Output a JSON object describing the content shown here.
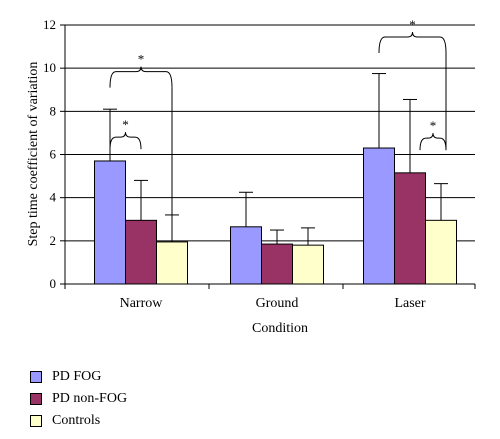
{
  "chart_data": {
    "type": "bar",
    "ylabel": "Step time coefficient of variation",
    "xlabel": "Condition",
    "ylim": [
      0,
      12
    ],
    "yticks": [
      0,
      2,
      4,
      6,
      8,
      10,
      12
    ],
    "grid": true,
    "legend_position": "bottom-left",
    "categories": [
      "Narrow",
      "Ground",
      "Laser"
    ],
    "series": [
      {
        "name": "PD FOG",
        "color": "#9999ff",
        "values": [
          5.7,
          2.65,
          6.3
        ],
        "errors": [
          2.4,
          1.6,
          3.45
        ]
      },
      {
        "name": "PD non-FOG",
        "color": "#993366",
        "values": [
          2.95,
          1.85,
          5.15
        ],
        "errors": [
          1.85,
          0.65,
          3.4
        ]
      },
      {
        "name": "Controls",
        "color": "#ffffcc",
        "values": [
          1.95,
          1.8,
          2.95
        ],
        "errors": [
          1.25,
          0.8,
          1.7
        ]
      }
    ],
    "significance": [
      {
        "label": "*",
        "category": "Narrow",
        "from_series": 0,
        "to_series": 1
      },
      {
        "label": "*",
        "category": "Narrow",
        "from_series": 0,
        "to_series": 2
      },
      {
        "label": "*",
        "category": "Laser",
        "from_series": 1,
        "to_series": 2
      },
      {
        "label": "*",
        "category": "Laser",
        "from_series": 0,
        "to_series": 2
      }
    ]
  }
}
